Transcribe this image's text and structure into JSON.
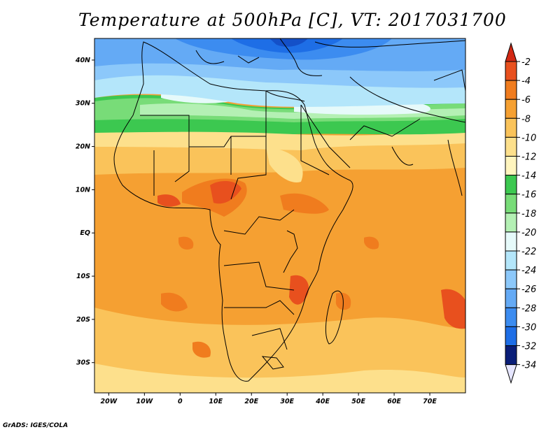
{
  "title": "Temperature at 500hPa [C], VT: 2017031700",
  "credit": "GrADS: IGES/COLA",
  "map": {
    "type": "filled-contour-map",
    "variable": "Temperature at 500hPa",
    "units": "C",
    "valid_time": "2017031700",
    "lon_range": [
      -24,
      80
    ],
    "lat_range": [
      -37,
      45
    ],
    "lat_ticks": [
      {
        "value": 40,
        "label": "40N"
      },
      {
        "value": 30,
        "label": "30N"
      },
      {
        "value": 20,
        "label": "20N"
      },
      {
        "value": 10,
        "label": "10N"
      },
      {
        "value": 0,
        "label": "EQ"
      },
      {
        "value": -10,
        "label": "10S"
      },
      {
        "value": -20,
        "label": "20S"
      },
      {
        "value": -30,
        "label": "30S"
      }
    ],
    "lon_ticks": [
      {
        "value": -20,
        "label": "20W"
      },
      {
        "value": -10,
        "label": "10W"
      },
      {
        "value": 0,
        "label": "0"
      },
      {
        "value": 10,
        "label": "10E"
      },
      {
        "value": 20,
        "label": "20E"
      },
      {
        "value": 30,
        "label": "30E"
      },
      {
        "value": 40,
        "label": "40E"
      },
      {
        "value": 50,
        "label": "50E"
      },
      {
        "value": 60,
        "label": "60E"
      },
      {
        "value": 70,
        "label": "70E"
      }
    ]
  },
  "colorbar": {
    "levels": [
      {
        "label": "-2",
        "color": "#e8501e"
      },
      {
        "label": "-4",
        "color": "#f07c1e"
      },
      {
        "label": "-6",
        "color": "#f5a032"
      },
      {
        "label": "-8",
        "color": "#fac35a"
      },
      {
        "label": "-10",
        "color": "#fde08c"
      },
      {
        "label": "-12",
        "color": "#fff5be"
      },
      {
        "label": "-14",
        "color": "#3cc850"
      },
      {
        "label": "-16",
        "color": "#78dc78"
      },
      {
        "label": "-18",
        "color": "#b4f0b4"
      },
      {
        "label": "-20",
        "color": "#e6fafa"
      },
      {
        "label": "-22",
        "color": "#b4e6fa"
      },
      {
        "label": "-24",
        "color": "#8cc8fa"
      },
      {
        "label": "-26",
        "color": "#64aaf5"
      },
      {
        "label": "-28",
        "color": "#3c8cf0"
      },
      {
        "label": "-30",
        "color": "#1e6ee6"
      },
      {
        "label": "-32",
        "color": "#1450c8"
      },
      {
        "label": "-34",
        "color": "#0a1e78"
      }
    ],
    "top_color": "#d22814",
    "bottom_color": "#e6e6ff"
  }
}
